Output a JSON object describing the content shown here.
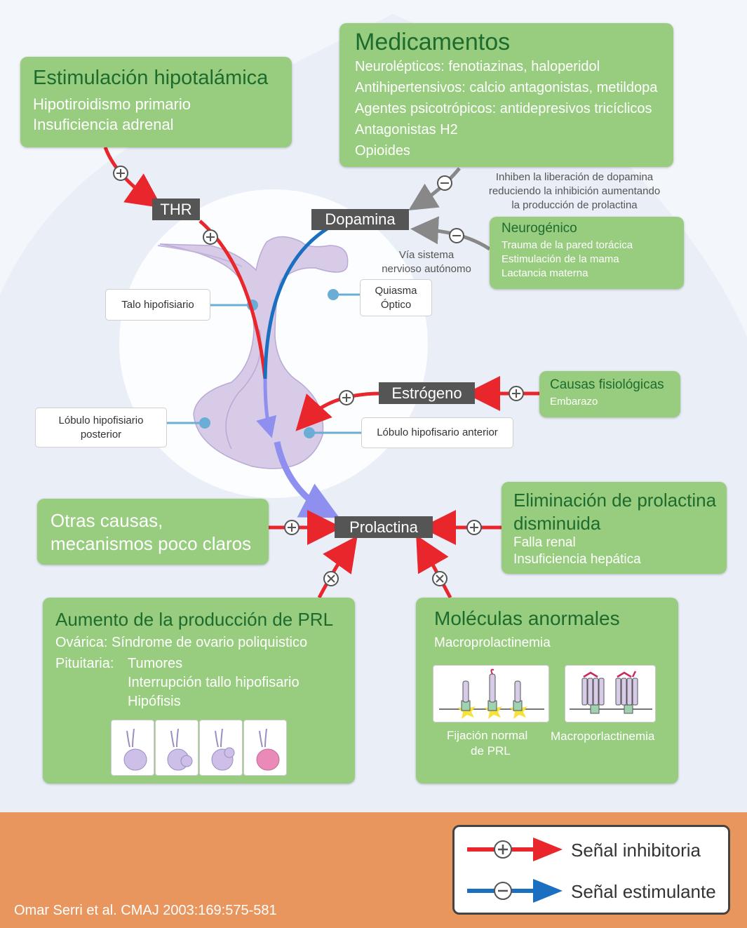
{
  "boxes": {
    "hypothalamic": {
      "title": "Estimulación hipotalámica",
      "lines": [
        "Hipotiroidismo primario",
        "Insuficiencia adrenal"
      ]
    },
    "drugs": {
      "title": "Medicamentos",
      "lines": [
        "Neurolépticos: fenotiazinas, haloperidol",
        "Antihipertensivos: calcio antagonistas, metildopa",
        "Agentes psicotrópicos: antidepresivos tricíclicos",
        "Antagonistas H2",
        "Opioides"
      ]
    },
    "neurogenic": {
      "title": "Neurogénico",
      "lines": [
        "Trauma de la pared torácica",
        "Estimulación de la mama",
        "Lactancia materna"
      ]
    },
    "physiological": {
      "title": "Causas fisiológicas",
      "lines": [
        "Embarazo"
      ]
    },
    "other": {
      "title_lines": [
        "Otras causas,",
        "mecanismos poco claros"
      ]
    },
    "elimination": {
      "title_lines": [
        "Eliminación de prolactina",
        "disminuida"
      ],
      "lines": [
        "Falla renal",
        "Insuficiencia hepática"
      ]
    },
    "production": {
      "title": "Aumento de la producción de PRL",
      "ovarian": "Ovárica: Síndrome de ovario poliquistico",
      "pit_label": "Pituitaria:",
      "pit_lines": [
        "Tumores",
        "Interrupción tallo hipofisario",
        "Hipófisis"
      ]
    },
    "molecules": {
      "title": "Moléculas anormales",
      "subtitle": "Macroprolactinemia",
      "cap1_lines": [
        "Fijación normal",
        "de PRL"
      ],
      "cap2": "Macroporlactinemia"
    }
  },
  "tags": {
    "thr": "THR",
    "dopamine": "Dopamina",
    "estrogen": "Estrógeno",
    "prolactin": "Prolactina"
  },
  "notes": {
    "dopamine_note": [
      "Inhiben la liberación de dopamina",
      "reduciendo la inhibición aumentando",
      "la producción de prolactina"
    ],
    "autonomic": [
      "Vía sistema",
      "nervioso autónomo"
    ]
  },
  "labels": {
    "stalk": "Talo hipofisiario",
    "chiasm": [
      "Quiasma",
      "Óptico"
    ],
    "posterior": [
      "Lóbulo hipofisiario",
      "posterior"
    ],
    "anterior": "Lóbulo hipofisario anterior"
  },
  "legend": {
    "red": "Señal inhibitoria",
    "blue": "Señal estimulante",
    "red_color": "#e8262c",
    "blue_color": "#1b6fc0"
  },
  "citation": "Omar Serri et al. CMAJ 2003:169:575-581",
  "colors": {
    "box": "#98cd7f",
    "box_title": "#1e6b2e",
    "footer": "#e9965e",
    "tag": "#555555",
    "pituitary": "#d7cbe8"
  }
}
